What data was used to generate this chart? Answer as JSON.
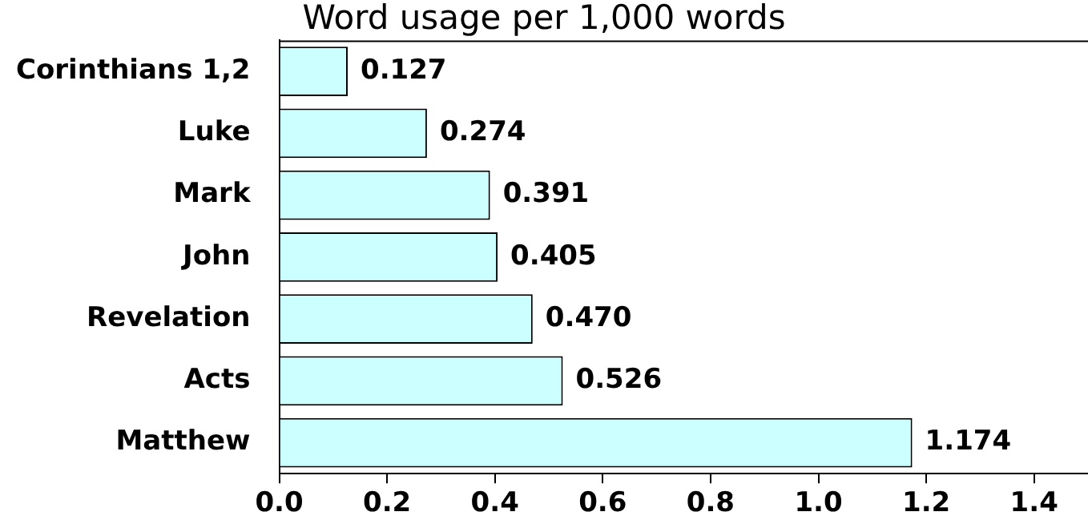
{
  "chart_data": {
    "type": "bar",
    "orientation": "horizontal",
    "title": "Word usage per 1,000 words",
    "categories": [
      "Corinthians 1,2",
      "Luke",
      "Mark",
      "John",
      "Revelation",
      "Acts",
      "Matthew"
    ],
    "values": [
      0.127,
      0.274,
      0.391,
      0.405,
      0.47,
      0.526,
      1.174
    ],
    "value_labels": [
      "0.127",
      "0.274",
      "0.391",
      "0.405",
      "0.470",
      "0.526",
      "1.174"
    ],
    "color": "#ccffff",
    "xlim": [
      0,
      1.5
    ],
    "xticks": [
      {
        "value": 0,
        "label": "0.0"
      },
      0.2,
      0.4,
      0.6,
      0.8,
      {
        "value": 1,
        "label": "1.0"
      },
      1.2,
      1.4
    ],
    "grid": false,
    "legend": false
  }
}
